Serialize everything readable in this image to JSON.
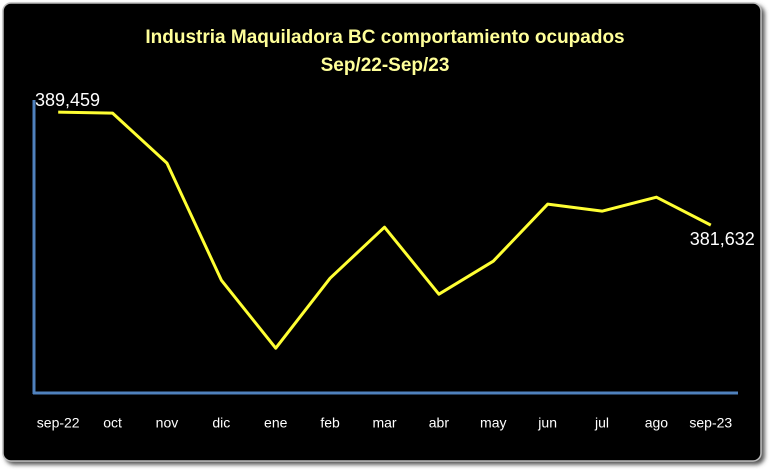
{
  "chart_data": {
    "type": "line",
    "title": "Industria Maquiladora BC comportamiento ocupados",
    "subtitle": "Sep/22-Sep/23",
    "categories": [
      "sep-22",
      "oct",
      "nov",
      "dic",
      "ene",
      "feb",
      "mar",
      "abr",
      "may",
      "jun",
      "jul",
      "ago",
      "sep-23"
    ],
    "series": [
      {
        "color": "#ffff33",
        "values": [
          389459,
          389390,
          385925,
          377817,
          373104,
          377955,
          381490,
          376847,
          379133,
          383083,
          382598,
          383568,
          381632
        ],
        "value_labels": [
          "389,459",
          null,
          null,
          null,
          null,
          null,
          null,
          null,
          null,
          null,
          null,
          null,
          "381,632"
        ]
      }
    ],
    "ylim": [
      370000,
      390300
    ]
  }
}
